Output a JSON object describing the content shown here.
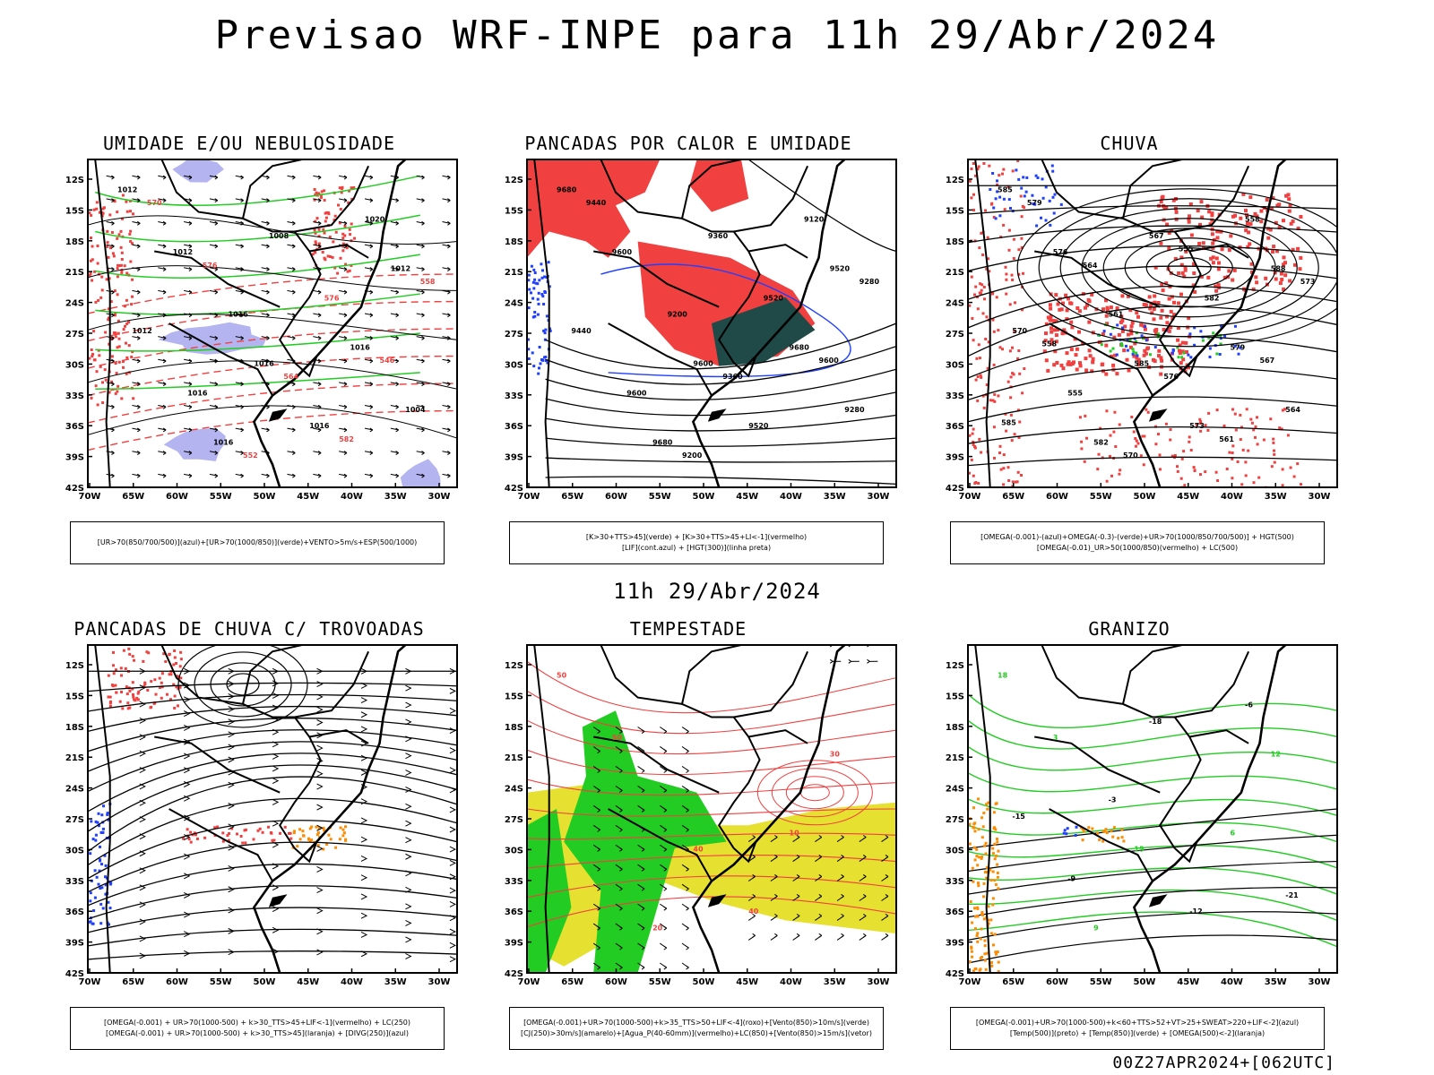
{
  "title": "Previsao WRF-INPE  para 11h 29/Abr/2024",
  "subtitle": "11h 29/Abr/2024",
  "footer": "00Z27APR2024+[062UTC]",
  "axes": {
    "lat_labels": [
      "12S",
      "15S",
      "18S",
      "21S",
      "24S",
      "27S",
      "30S",
      "33S",
      "36S",
      "39S",
      "42S"
    ],
    "lon_labels": [
      "70W",
      "65W",
      "60W",
      "55W",
      "50W",
      "45W",
      "40W",
      "35W",
      "30W"
    ]
  },
  "colors": {
    "humid_blue": "#b4b4f0",
    "green": "#22cc22",
    "red": "#f04040",
    "dark_teal": "#1f4a48",
    "yellow": "#e6e030",
    "blue": "#2040ff",
    "orange": "#ff8c00"
  },
  "panels": [
    {
      "title": "UMIDADE E/OU NEBULOSIDADE",
      "legend": [
        "[UR>70(850/700/500)](azul)+[UR>70(1000/850)](verde)+VENTO>5m/s+ESP(500/1000)"
      ],
      "labels": [
        "1012",
        "1016",
        "1012",
        "1016",
        "1016",
        "1012",
        "1016",
        "1012",
        "1008",
        "1004",
        "1016",
        "1020",
        "1016",
        "576",
        "570",
        "564",
        "558",
        "552",
        "546",
        "576",
        "582"
      ]
    },
    {
      "title": "PANCADAS POR CALOR E UMIDADE",
      "legend": [
        "[K>30+TTS>45](verde) + [K>30+TTS>45+LI<-1](vermelho)",
        "[LIF](cont.azul) + [HGT(300)](linha preta)"
      ],
      "labels": [
        "9680",
        "9600",
        "9520",
        "9680",
        "9680",
        "9600",
        "9520",
        "9440",
        "9360",
        "9280",
        "9200",
        "9120",
        "9600",
        "9520",
        "9440",
        "9360",
        "9280",
        "9200",
        "9600"
      ]
    },
    {
      "title": "CHUVA",
      "legend": [
        "[OMEGA(-0.001)-(azul)+OMEGA(-0.3)-(verde)+UR>70(1000/850/700/500)] + HGT(500)",
        "[OMEGA(-0.01)_UR>50(1000/850)(vermelho) + LC(500)"
      ],
      "labels": [
        "585",
        "585",
        "588",
        "582",
        "579",
        "576",
        "573",
        "570",
        "567",
        "564",
        "561",
        "558",
        "555",
        "582",
        "579",
        "576",
        "573",
        "570",
        "567",
        "564",
        "561",
        "558",
        "555",
        "585"
      ]
    },
    {
      "title": "PANCADAS DE CHUVA C/ TROVOADAS",
      "legend": [
        "[OMEGA(-0.001) + UR>70(1000-500) + k>30_TTS>45+LIF<-1](vermelho) + LC(250)",
        "[OMEGA(-0.001) + UR>70(1000-500) + k>30_TTS>45](laranja) + [DIVG(250)](azul)"
      ],
      "labels": []
    },
    {
      "title": "TEMPESTADE",
      "legend": [
        "[OMEGA(-0.001)+UR>70(1000-500)+k>35_TTS>50+LIF<-4](roxo)+[Vento(850)>10m/s](verde)",
        "[CJ(250)>30m/s](amarelo)+[Agua_P(40-60mm)](vermelho)+LC(850)+[Vento(850)>15m/s](vetor)"
      ],
      "labels": [
        "50",
        "40",
        "30",
        "20",
        "10",
        "50",
        "40"
      ]
    },
    {
      "title": "GRANIZO",
      "legend": [
        "[OMEGA(-0.001)+UR>70(1000-500)+k<60+TTS>52+VT>25+SWEAT>220+LIF<-2](azul)",
        "[Temp(500)](preto) + [Temp(850)](verde) + [OMEGA(500)<-2](laranja)"
      ],
      "labels": [
        "18",
        "15",
        "12",
        "9",
        "6",
        "3",
        "-12",
        "-15",
        "-18",
        "-21",
        "-3",
        "-6",
        "-9"
      ]
    }
  ]
}
